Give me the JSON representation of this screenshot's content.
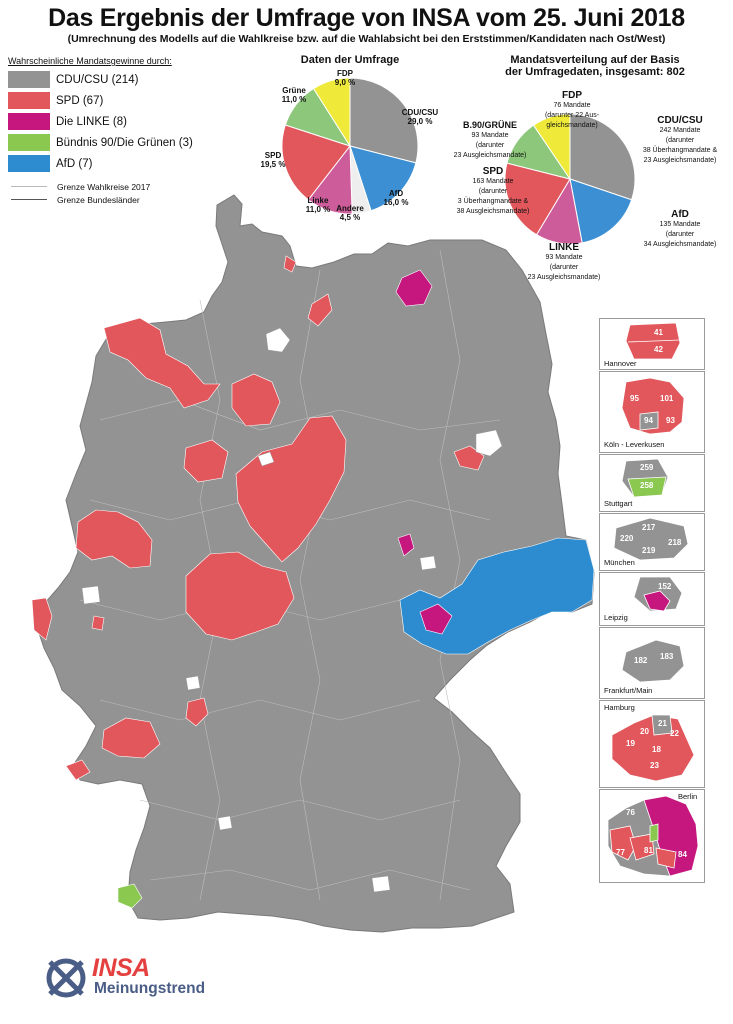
{
  "title": "Das Ergebnis der Umfrage von INSA vom 25. Juni 2018",
  "subtitle": "(Umrechnung des Modells auf die Wahlkreise bzw. auf die Wahlabsicht bei den Erststimmen/Kandidaten nach Ost/West)",
  "colors": {
    "cdu": "#939393",
    "spd": "#e2575c",
    "linke": "#c6177f",
    "gruene": "#8ac850",
    "afd": "#2d8ccf",
    "fdp": "#efea3a",
    "andere": "#eeeeee",
    "gruene_pie": "#8dc77b",
    "linke_pie": "#cd5d9a",
    "afd_pie": "#3c8fd3"
  },
  "legend": {
    "heading": "Wahrscheinliche Mandatsgewinne durch:",
    "items": [
      {
        "label": "CDU/CSU (214)",
        "color": "#939393"
      },
      {
        "label": "SPD (67)",
        "color": "#e2575c"
      },
      {
        "label": "Die LINKE (8)",
        "color": "#c6177f"
      },
      {
        "label": "Bündnis 90/Die Grünen (3)",
        "color": "#8ac850"
      },
      {
        "label": "AfD (7)",
        "color": "#2d8ccf"
      }
    ],
    "lines": [
      {
        "label": "Grenze Wahlkreise 2017"
      },
      {
        "label": "Grenze Bundesländer"
      }
    ]
  },
  "poll": {
    "title": "Daten der Umfrage",
    "slices": [
      {
        "party": "CDU/CSU",
        "value": 29.0,
        "label": "29,0 %",
        "color": "#939393"
      },
      {
        "party": "AfD",
        "value": 16.0,
        "label": "16,0 %",
        "color": "#3c8fd3"
      },
      {
        "party": "Andere",
        "value": 4.5,
        "label": "4,5 %",
        "color": "#eeeeee"
      },
      {
        "party": "Linke",
        "value": 11.0,
        "label": "11,0 %",
        "color": "#cd5d9a"
      },
      {
        "party": "SPD",
        "value": 19.5,
        "label": "19,5 %",
        "color": "#e2575c"
      },
      {
        "party": "Grüne",
        "value": 11.0,
        "label": "11,0 %",
        "color": "#8dc77b"
      },
      {
        "party": "FDP",
        "value": 9.0,
        "label": "9,0 %",
        "color": "#efea3a"
      }
    ]
  },
  "seats": {
    "title_line1": "Mandatsverteilung auf der Basis",
    "title_line2": "der Umfragedaten, insgesamt: 802",
    "slices": [
      {
        "party": "CDU/CSU",
        "value": 242,
        "color": "#939393",
        "line1": "242 Mandate",
        "line2": "(darunter",
        "line3": "38 Überhangmandate &",
        "line4": "23 Ausgleichsmandate)"
      },
      {
        "party": "AfD",
        "value": 135,
        "color": "#3c8fd3",
        "line1": "135 Mandate",
        "line2": "(darunter",
        "line3": "34 Ausgleichsmandate)"
      },
      {
        "party": "LINKE",
        "value": 93,
        "color": "#cd5d9a",
        "line1": "93 Mandate",
        "line2": "(darunter",
        "line3": "23 Ausgleichsmandate)"
      },
      {
        "party": "SPD",
        "value": 163,
        "color": "#e2575c",
        "line1": "163 Mandate",
        "line2": "(darunter",
        "line3": "3 Überhangmandate &",
        "line4": "38 Ausgleichsmandate)"
      },
      {
        "party": "B.90/GRÜNE",
        "value": 93,
        "color": "#8dc77b",
        "line1": "93 Mandate",
        "line2": "(darunter",
        "line3": "23 Ausgleichsmandate)"
      },
      {
        "party": "FDP",
        "value": 76,
        "color": "#efea3a",
        "line1": "76 Mandate",
        "line2": "(darunter 22 Aus-",
        "line3": "gleichsmandate)"
      }
    ]
  },
  "insets": [
    {
      "name": "Hannover",
      "numbers": [
        "41",
        "42"
      ]
    },
    {
      "name": "Köln - Leverkusen",
      "numbers": [
        "95",
        "101",
        "94",
        "93"
      ]
    },
    {
      "name": "Stuttgart",
      "numbers": [
        "259",
        "258"
      ]
    },
    {
      "name": "München",
      "numbers": [
        "217",
        "220",
        "218",
        "219"
      ]
    },
    {
      "name": "Leipzig",
      "numbers": [
        "152"
      ]
    },
    {
      "name": "Frankfurt/Main",
      "numbers": [
        "182",
        "183"
      ]
    },
    {
      "name": "Hamburg",
      "numbers": [
        "21",
        "20",
        "22",
        "19",
        "18",
        "23"
      ]
    },
    {
      "name": "Berlin",
      "numbers": [
        "76",
        "77",
        "81",
        "84"
      ]
    }
  ],
  "logo": {
    "brand": "INSA",
    "sub": "Meinungstrend"
  }
}
